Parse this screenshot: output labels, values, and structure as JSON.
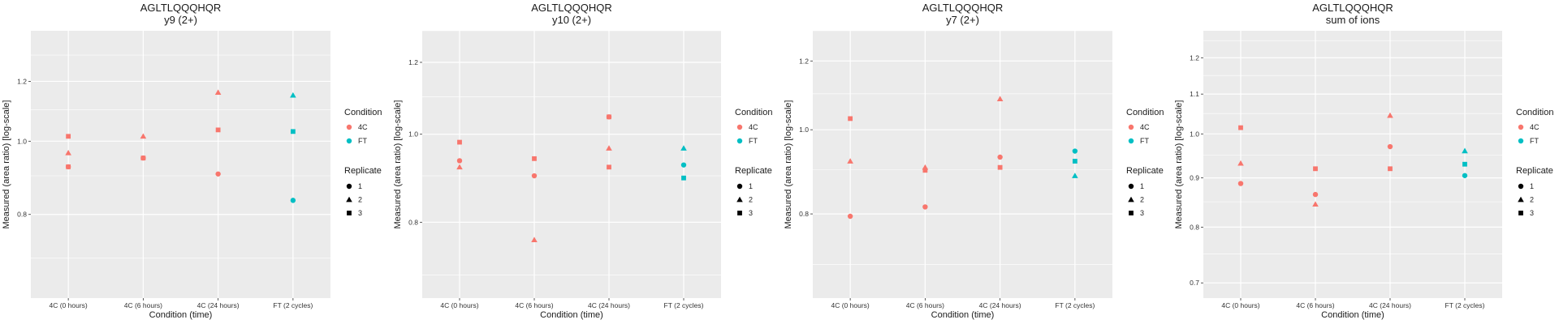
{
  "colors": {
    "panel_bg": "#EBEBEB",
    "grid": "#FFFFFF",
    "4C": "#F8766D",
    "FT": "#00BFC4",
    "legend_key": "#000000"
  },
  "legend": {
    "condition_title": "Condition",
    "condition_items": [
      "4C",
      "FT"
    ],
    "replicate_title": "Replicate",
    "replicate_items": [
      {
        "label": "1",
        "shape": "circle"
      },
      {
        "label": "2",
        "shape": "triangle"
      },
      {
        "label": "3",
        "shape": "square"
      }
    ]
  },
  "chart_data": [
    {
      "type": "scatter",
      "title": "AGLTLQQQHQR",
      "subtitle": "y9 (2+)",
      "xlabel": "Condition (time)",
      "ylabel": "Measured (area ratio) [log-scale]",
      "y_scale": "log",
      "ylim": [
        0.62,
        1.4
      ],
      "yticks": [
        0.8,
        1.0,
        1.2
      ],
      "categories": [
        "4C (0 hours)",
        "4C (6 hours)",
        "4C (24 hours)",
        "FT (2 cycles)"
      ],
      "points": [
        {
          "x": "4C (0 hours)",
          "y": 1.015,
          "condition": "4C",
          "replicate": "3"
        },
        {
          "x": "4C (0 hours)",
          "y": 0.965,
          "condition": "4C",
          "replicate": "2"
        },
        {
          "x": "4C (0 hours)",
          "y": 0.925,
          "condition": "4C",
          "replicate": "1"
        },
        {
          "x": "4C (0 hours)",
          "y": 0.925,
          "condition": "4C",
          "replicate": "3"
        },
        {
          "x": "4C (6 hours)",
          "y": 1.015,
          "condition": "4C",
          "replicate": "2"
        },
        {
          "x": "4C (6 hours)",
          "y": 0.95,
          "condition": "4C",
          "replicate": "1"
        },
        {
          "x": "4C (6 hours)",
          "y": 0.95,
          "condition": "4C",
          "replicate": "3"
        },
        {
          "x": "4C (24 hours)",
          "y": 1.16,
          "condition": "4C",
          "replicate": "2"
        },
        {
          "x": "4C (24 hours)",
          "y": 1.035,
          "condition": "4C",
          "replicate": "3"
        },
        {
          "x": "4C (24 hours)",
          "y": 0.905,
          "condition": "4C",
          "replicate": "1"
        },
        {
          "x": "FT (2 cycles)",
          "y": 1.15,
          "condition": "FT",
          "replicate": "2"
        },
        {
          "x": "FT (2 cycles)",
          "y": 1.03,
          "condition": "FT",
          "replicate": "3"
        },
        {
          "x": "FT (2 cycles)",
          "y": 0.835,
          "condition": "FT",
          "replicate": "1"
        }
      ]
    },
    {
      "type": "scatter",
      "title": "AGLTLQQQHQR",
      "subtitle": "y10 (2+)",
      "xlabel": "Condition (time)",
      "ylabel": "Measured (area ratio) [log-scale]",
      "y_scale": "log",
      "ylim": [
        0.66,
        1.3
      ],
      "yticks": [
        0.8,
        1.0,
        1.2
      ],
      "categories": [
        "4C (0 hours)",
        "4C (6 hours)",
        "4C (24 hours)",
        "FT (2 cycles)"
      ],
      "points": [
        {
          "x": "4C (0 hours)",
          "y": 0.98,
          "condition": "4C",
          "replicate": "3"
        },
        {
          "x": "4C (0 hours)",
          "y": 0.935,
          "condition": "4C",
          "replicate": "1"
        },
        {
          "x": "4C (0 hours)",
          "y": 0.92,
          "condition": "4C",
          "replicate": "2"
        },
        {
          "x": "4C (6 hours)",
          "y": 0.94,
          "condition": "4C",
          "replicate": "3"
        },
        {
          "x": "4C (6 hours)",
          "y": 0.9,
          "condition": "4C",
          "replicate": "1"
        },
        {
          "x": "4C (6 hours)",
          "y": 0.765,
          "condition": "4C",
          "replicate": "2"
        },
        {
          "x": "4C (24 hours)",
          "y": 1.045,
          "condition": "4C",
          "replicate": "1"
        },
        {
          "x": "4C (24 hours)",
          "y": 1.045,
          "condition": "4C",
          "replicate": "3"
        },
        {
          "x": "4C (24 hours)",
          "y": 0.965,
          "condition": "4C",
          "replicate": "2"
        },
        {
          "x": "4C (24 hours)",
          "y": 0.92,
          "condition": "4C",
          "replicate": "3"
        },
        {
          "x": "FT (2 cycles)",
          "y": 0.965,
          "condition": "FT",
          "replicate": "2"
        },
        {
          "x": "FT (2 cycles)",
          "y": 0.925,
          "condition": "FT",
          "replicate": "1"
        },
        {
          "x": "FT (2 cycles)",
          "y": 0.895,
          "condition": "FT",
          "replicate": "3"
        }
      ]
    },
    {
      "type": "scatter",
      "title": "AGLTLQQQHQR",
      "subtitle": "y7 (2+)",
      "xlabel": "Condition (time)",
      "ylabel": "Measured (area ratio) [log-scale]",
      "y_scale": "log",
      "ylim": [
        0.64,
        1.3
      ],
      "yticks": [
        0.8,
        1.0,
        1.2
      ],
      "categories": [
        "4C (0 hours)",
        "4C (6 hours)",
        "4C (24 hours)",
        "FT (2 cycles)"
      ],
      "points": [
        {
          "x": "4C (0 hours)",
          "y": 1.03,
          "condition": "4C",
          "replicate": "3"
        },
        {
          "x": "4C (0 hours)",
          "y": 0.92,
          "condition": "4C",
          "replicate": "2"
        },
        {
          "x": "4C (0 hours)",
          "y": 0.795,
          "condition": "4C",
          "replicate": "1"
        },
        {
          "x": "4C (6 hours)",
          "y": 0.905,
          "condition": "4C",
          "replicate": "2"
        },
        {
          "x": "4C (6 hours)",
          "y": 0.898,
          "condition": "4C",
          "replicate": "3"
        },
        {
          "x": "4C (6 hours)",
          "y": 0.815,
          "condition": "4C",
          "replicate": "1"
        },
        {
          "x": "4C (24 hours)",
          "y": 1.085,
          "condition": "4C",
          "replicate": "2"
        },
        {
          "x": "4C (24 hours)",
          "y": 0.93,
          "condition": "4C",
          "replicate": "1"
        },
        {
          "x": "4C (24 hours)",
          "y": 0.905,
          "condition": "4C",
          "replicate": "3"
        },
        {
          "x": "FT (2 cycles)",
          "y": 0.945,
          "condition": "FT",
          "replicate": "1"
        },
        {
          "x": "FT (2 cycles)",
          "y": 0.92,
          "condition": "FT",
          "replicate": "3"
        },
        {
          "x": "FT (2 cycles)",
          "y": 0.885,
          "condition": "FT",
          "replicate": "2"
        }
      ]
    },
    {
      "type": "scatter",
      "title": "AGLTLQQQHQR",
      "subtitle": "sum of ions",
      "xlabel": "Condition (time)",
      "ylabel": "Measured (area ratio) [log-scale]",
      "y_scale": "log",
      "ylim": [
        0.675,
        1.28
      ],
      "yticks": [
        0.7,
        0.8,
        0.9,
        1.0,
        1.1,
        1.2
      ],
      "categories": [
        "4C (0 hours)",
        "4C (6 hours)",
        "4C (24 hours)",
        "FT (2 cycles)"
      ],
      "points": [
        {
          "x": "4C (0 hours)",
          "y": 1.015,
          "condition": "4C",
          "replicate": "3"
        },
        {
          "x": "4C (0 hours)",
          "y": 0.932,
          "condition": "4C",
          "replicate": "2"
        },
        {
          "x": "4C (0 hours)",
          "y": 0.888,
          "condition": "4C",
          "replicate": "1"
        },
        {
          "x": "4C (6 hours)",
          "y": 0.92,
          "condition": "4C",
          "replicate": "3"
        },
        {
          "x": "4C (6 hours)",
          "y": 0.865,
          "condition": "4C",
          "replicate": "1"
        },
        {
          "x": "4C (6 hours)",
          "y": 0.845,
          "condition": "4C",
          "replicate": "2"
        },
        {
          "x": "4C (24 hours)",
          "y": 1.045,
          "condition": "4C",
          "replicate": "2"
        },
        {
          "x": "4C (24 hours)",
          "y": 0.97,
          "condition": "4C",
          "replicate": "1"
        },
        {
          "x": "4C (24 hours)",
          "y": 0.92,
          "condition": "4C",
          "replicate": "3"
        },
        {
          "x": "FT (2 cycles)",
          "y": 0.96,
          "condition": "FT",
          "replicate": "2"
        },
        {
          "x": "FT (2 cycles)",
          "y": 0.93,
          "condition": "FT",
          "replicate": "3"
        },
        {
          "x": "FT (2 cycles)",
          "y": 0.905,
          "condition": "FT",
          "replicate": "1"
        }
      ]
    }
  ]
}
